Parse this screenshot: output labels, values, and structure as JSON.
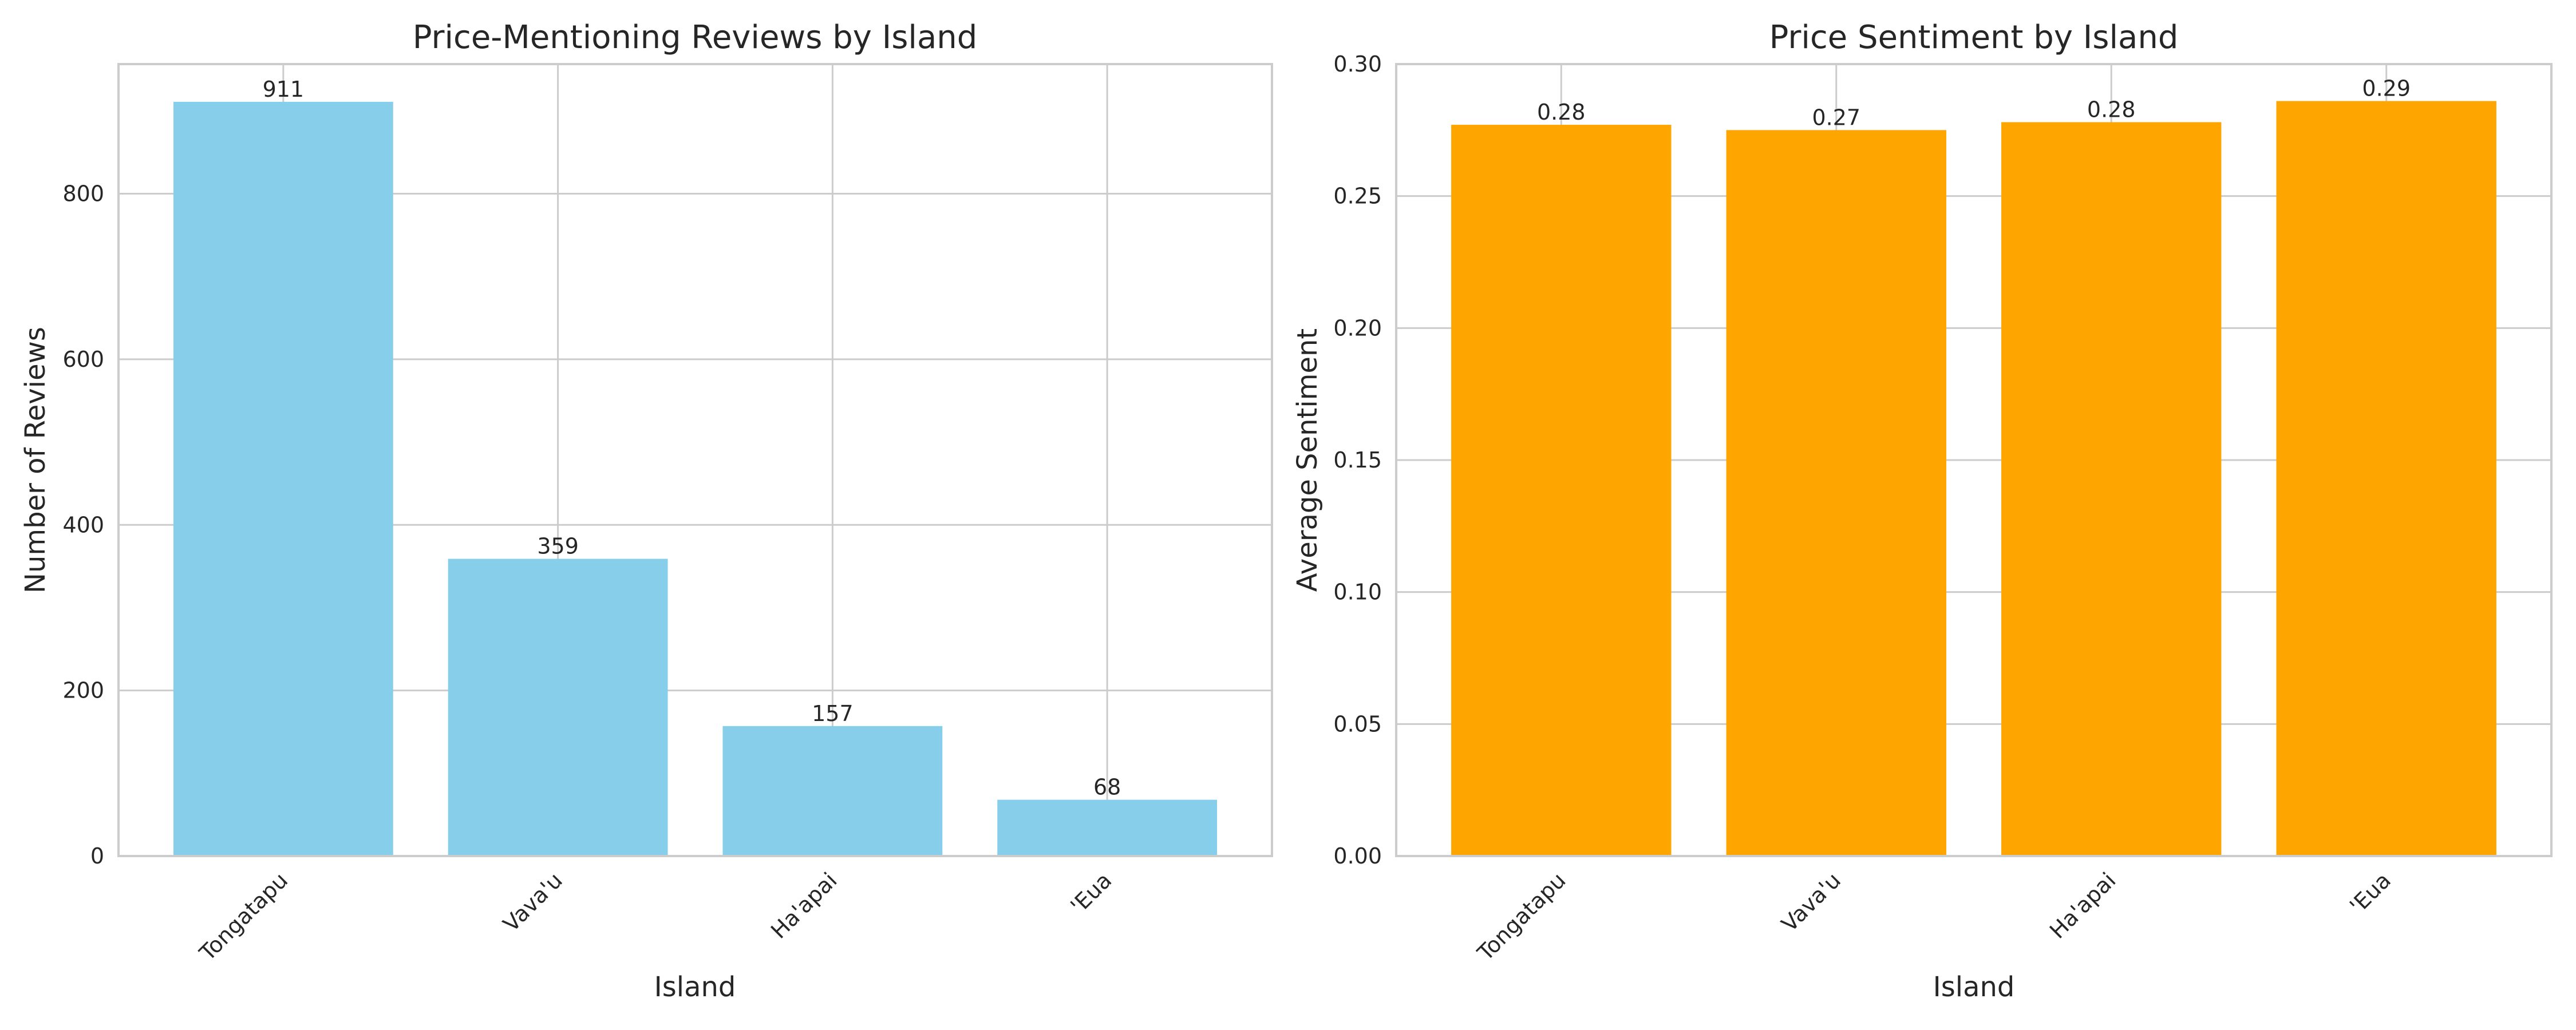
{
  "chart_data": [
    {
      "type": "bar",
      "title": "Price-Mentioning Reviews by Island",
      "xlabel": "Island",
      "ylabel": "Number of Reviews",
      "categories": [
        "Tongatapu",
        "Vava'u",
        "Ha'apai",
        "'Eua"
      ],
      "values": [
        911,
        359,
        157,
        68
      ],
      "data_labels": [
        "911",
        "359",
        "157",
        "68"
      ],
      "ylim": [
        0,
        956.55
      ],
      "yticks": [
        0,
        200,
        400,
        600,
        800
      ],
      "ytick_labels": [
        "0",
        "200",
        "400",
        "600",
        "800"
      ],
      "color": "#87CEEB",
      "grid": true
    },
    {
      "type": "bar",
      "title": "Price Sentiment by Island",
      "xlabel": "Island",
      "ylabel": "Average Sentiment",
      "categories": [
        "Tongatapu",
        "Vava'u",
        "Ha'apai",
        "'Eua"
      ],
      "values": [
        0.277,
        0.275,
        0.278,
        0.286
      ],
      "data_labels": [
        "0.28",
        "0.27",
        "0.28",
        "0.29"
      ],
      "ylim": [
        0,
        0.3
      ],
      "yticks": [
        0.0,
        0.05,
        0.1,
        0.15,
        0.2,
        0.25,
        0.3
      ],
      "ytick_labels": [
        "0.00",
        "0.05",
        "0.10",
        "0.15",
        "0.20",
        "0.25",
        "0.30"
      ],
      "color": "#FFA500",
      "grid": true
    }
  ]
}
